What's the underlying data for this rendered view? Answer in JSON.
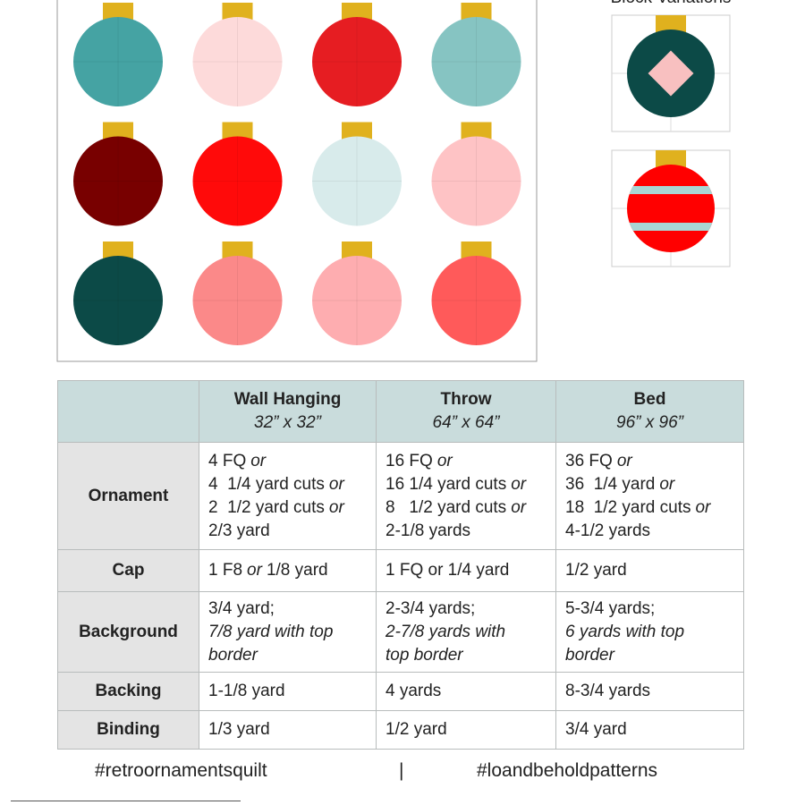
{
  "header": {
    "title": "Block Variations"
  },
  "table": {
    "columns": [
      {
        "name": "Wall Hanging",
        "size": "32” x 32”"
      },
      {
        "name": "Throw",
        "size": "64” x 64”"
      },
      {
        "name": "Bed",
        "size": "96” x 96”"
      }
    ],
    "rows": [
      {
        "label": "Ornament",
        "cells": [
          [
            [
              "4 FQ",
              {
                "italic": "or"
              }
            ],
            [
              "4  1/4 yard cuts",
              {
                "italic": "or"
              }
            ],
            [
              "2  1/2 yard cuts",
              {
                "italic": "or"
              }
            ],
            [
              "2/3 yard"
            ]
          ],
          [
            [
              "16 FQ",
              {
                "italic": "or"
              }
            ],
            [
              "16 1/4 yard cuts",
              {
                "italic": "or"
              }
            ],
            [
              "8   1/2 yard cuts",
              {
                "italic": "or"
              }
            ],
            [
              "2-1/8 yards"
            ]
          ],
          [
            [
              "36 FQ",
              {
                "italic": "or"
              }
            ],
            [
              "36  1/4 yard",
              {
                "italic": "or"
              }
            ],
            [
              "18  1/2 yard cuts",
              {
                "italic": "or"
              }
            ],
            [
              "4-1/2 yards"
            ]
          ]
        ]
      },
      {
        "label": "Cap",
        "cells": [
          [
            [
              "1 F8",
              {
                "italic": "or"
              },
              "1/8 yard"
            ]
          ],
          [
            [
              "1 FQ or 1/4 yard"
            ]
          ],
          [
            [
              "1/2 yard"
            ]
          ]
        ]
      },
      {
        "label": "Background",
        "cells": [
          [
            [
              "3/4 yard;"
            ],
            [
              {
                "italic": "7/8 yard with top"
              }
            ],
            [
              {
                "italic": "border"
              }
            ]
          ],
          [
            [
              "2-3/4 yards;"
            ],
            [
              {
                "italic": "2-7/8 yards with"
              }
            ],
            [
              {
                "italic": "top border"
              }
            ]
          ],
          [
            [
              "5-3/4 yards;"
            ],
            [
              {
                "italic": "6 yards with top"
              }
            ],
            [
              {
                "italic": "border"
              }
            ]
          ]
        ]
      },
      {
        "label": "Backing",
        "cells": [
          [
            [
              "1-1/8 yard"
            ]
          ],
          [
            [
              "4 yards"
            ]
          ],
          [
            [
              "8-3/4 yards"
            ]
          ]
        ]
      },
      {
        "label": "Binding",
        "cells": [
          [
            [
              "1/3 yard"
            ]
          ],
          [
            [
              "1/2 yard"
            ]
          ],
          [
            [
              "3/4 yard"
            ]
          ]
        ]
      }
    ]
  },
  "footer": {
    "left": "#retroornamentsquilt",
    "separator": "|",
    "right": "#loandbeholdpatterns"
  }
}
